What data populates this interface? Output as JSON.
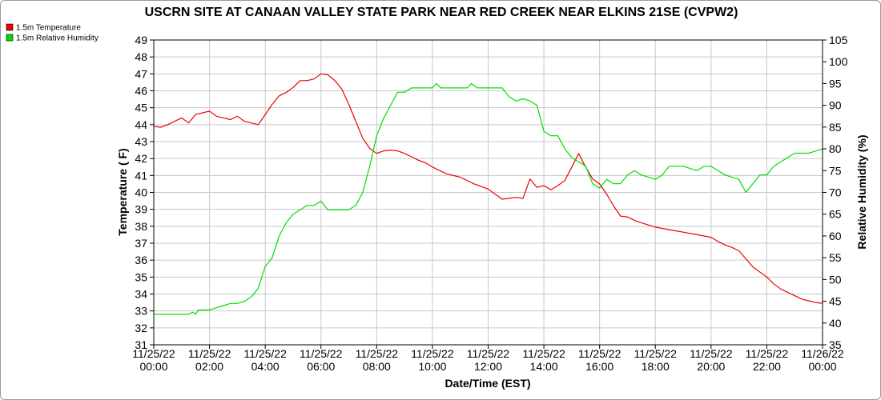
{
  "chart_data": {
    "type": "line",
    "title": "USCRN SITE AT CANAAN VALLEY STATE PARK NEAR RED CREEK NEAR ELKINS 21SE (CVPW2)",
    "xlabel": "Date/Time (EST)",
    "ylabel": "Temperature ( F)",
    "y2label": "Relative Humidity (%)",
    "xlim": [
      0,
      24
    ],
    "ylim": [
      31,
      49
    ],
    "y2lim": [
      35,
      105
    ],
    "x_ticks": [
      {
        "date": "11/25/22",
        "time": "00:00"
      },
      {
        "date": "11/25/22",
        "time": "02:00"
      },
      {
        "date": "11/25/22",
        "time": "04:00"
      },
      {
        "date": "11/25/22",
        "time": "06:00"
      },
      {
        "date": "11/25/22",
        "time": "08:00"
      },
      {
        "date": "11/25/22",
        "time": "10:00"
      },
      {
        "date": "11/25/22",
        "time": "12:00"
      },
      {
        "date": "11/25/22",
        "time": "14:00"
      },
      {
        "date": "11/25/22",
        "time": "16:00"
      },
      {
        "date": "11/25/22",
        "time": "18:00"
      },
      {
        "date": "11/25/22",
        "time": "20:00"
      },
      {
        "date": "11/25/22",
        "time": "22:00"
      },
      {
        "date": "11/26/22",
        "time": "00:00"
      }
    ],
    "y_ticks": [
      "31",
      "32",
      "33",
      "34",
      "35",
      "36",
      "37",
      "38",
      "39",
      "40",
      "41",
      "42",
      "43",
      "44",
      "45",
      "46",
      "47",
      "48",
      "49"
    ],
    "y2_ticks": [
      "35",
      "40",
      "45",
      "50",
      "55",
      "60",
      "65",
      "70",
      "75",
      "80",
      "85",
      "90",
      "95",
      "100",
      "105"
    ],
    "grid": true,
    "legend": "top-left",
    "series": [
      {
        "name": "1.5m Temperature",
        "color": "#ee0000",
        "axis": "left",
        "x": [
          0,
          0.25,
          0.5,
          0.75,
          1.0,
          1.25,
          1.5,
          1.75,
          2.0,
          2.25,
          2.5,
          2.75,
          3.0,
          3.25,
          3.5,
          3.75,
          4.0,
          4.25,
          4.5,
          4.75,
          5.0,
          5.25,
          5.5,
          5.75,
          6.0,
          6.25,
          6.5,
          6.75,
          7.0,
          7.25,
          7.5,
          7.75,
          8.0,
          8.25,
          8.5,
          8.75,
          9.0,
          9.25,
          9.5,
          9.75,
          10.0,
          10.5,
          11.0,
          11.5,
          12.0,
          12.5,
          13.0,
          13.25,
          13.5,
          13.75,
          14.0,
          14.25,
          14.5,
          14.75,
          15.0,
          15.25,
          15.4,
          15.6,
          15.75,
          16.0,
          16.25,
          16.5,
          16.75,
          17.0,
          17.25,
          17.5,
          18.0,
          18.5,
          19.0,
          19.5,
          20.0,
          20.25,
          20.5,
          20.75,
          21.0,
          21.5,
          22.0,
          22.25,
          22.5,
          22.75,
          23.0,
          23.25,
          23.5,
          23.75,
          24.0
        ],
        "values": [
          43.9,
          43.85,
          44.0,
          44.2,
          44.4,
          44.1,
          44.6,
          44.7,
          44.8,
          44.5,
          44.4,
          44.3,
          44.5,
          44.2,
          44.1,
          44.0,
          44.6,
          45.2,
          45.7,
          45.9,
          46.2,
          46.6,
          46.6,
          46.7,
          47.0,
          46.95,
          46.6,
          46.1,
          45.2,
          44.2,
          43.2,
          42.6,
          42.3,
          42.45,
          42.5,
          42.45,
          42.3,
          42.1,
          41.9,
          41.75,
          41.5,
          41.1,
          40.9,
          40.5,
          40.2,
          39.6,
          39.7,
          39.65,
          40.8,
          40.3,
          40.4,
          40.15,
          40.4,
          40.7,
          41.5,
          42.3,
          41.8,
          41.2,
          40.8,
          40.5,
          39.9,
          39.2,
          38.6,
          38.55,
          38.35,
          38.2,
          37.95,
          37.8,
          37.65,
          37.5,
          37.35,
          37.1,
          36.9,
          36.75,
          36.55,
          35.6,
          35.0,
          34.6,
          34.3,
          34.1,
          33.9,
          33.7,
          33.6,
          33.5,
          33.45
        ]
      },
      {
        "name": "1.5m Relative Humidity",
        "color": "#00dd00",
        "axis": "right",
        "x": [
          0,
          0.5,
          1.0,
          1.25,
          1.4,
          1.5,
          1.6,
          1.75,
          2.0,
          2.25,
          2.5,
          2.75,
          3.0,
          3.25,
          3.5,
          3.75,
          4.0,
          4.25,
          4.5,
          4.75,
          5.0,
          5.25,
          5.5,
          5.75,
          6.0,
          6.25,
          6.5,
          6.75,
          7.0,
          7.25,
          7.5,
          7.75,
          8.0,
          8.25,
          8.5,
          8.75,
          9.0,
          9.25,
          9.5,
          10.0,
          10.15,
          10.3,
          11.0,
          11.25,
          11.4,
          11.6,
          12.0,
          12.5,
          12.75,
          13.0,
          13.25,
          13.5,
          13.75,
          14.0,
          14.25,
          14.5,
          14.75,
          15.0,
          15.25,
          15.5,
          15.75,
          16.0,
          16.25,
          16.5,
          16.75,
          17.0,
          17.25,
          17.5,
          18.0,
          18.25,
          18.5,
          19.0,
          19.5,
          19.75,
          20.0,
          20.5,
          21.0,
          21.25,
          21.5,
          21.75,
          22.0,
          22.25,
          22.5,
          22.75,
          23.0,
          23.5,
          24.0
        ],
        "values": [
          42,
          42,
          42,
          42,
          42.5,
          42,
          43,
          43,
          43,
          43.5,
          44,
          44.5,
          44.5,
          45,
          46,
          48,
          53,
          55,
          60,
          63,
          65,
          66,
          67,
          67,
          68,
          66,
          66,
          66,
          66,
          67,
          70,
          76,
          83,
          87,
          90,
          93,
          93,
          94,
          94,
          94,
          95,
          94,
          94,
          94,
          95,
          94,
          94,
          94,
          92,
          91,
          91.5,
          91,
          90,
          84,
          83,
          83,
          80,
          78,
          77,
          76,
          72,
          71,
          73,
          72,
          72,
          74,
          75,
          74,
          73,
          74,
          76,
          76,
          75,
          76,
          76,
          74,
          73,
          70,
          72,
          74,
          74,
          76,
          77,
          78,
          79,
          79,
          80
        ]
      }
    ]
  }
}
